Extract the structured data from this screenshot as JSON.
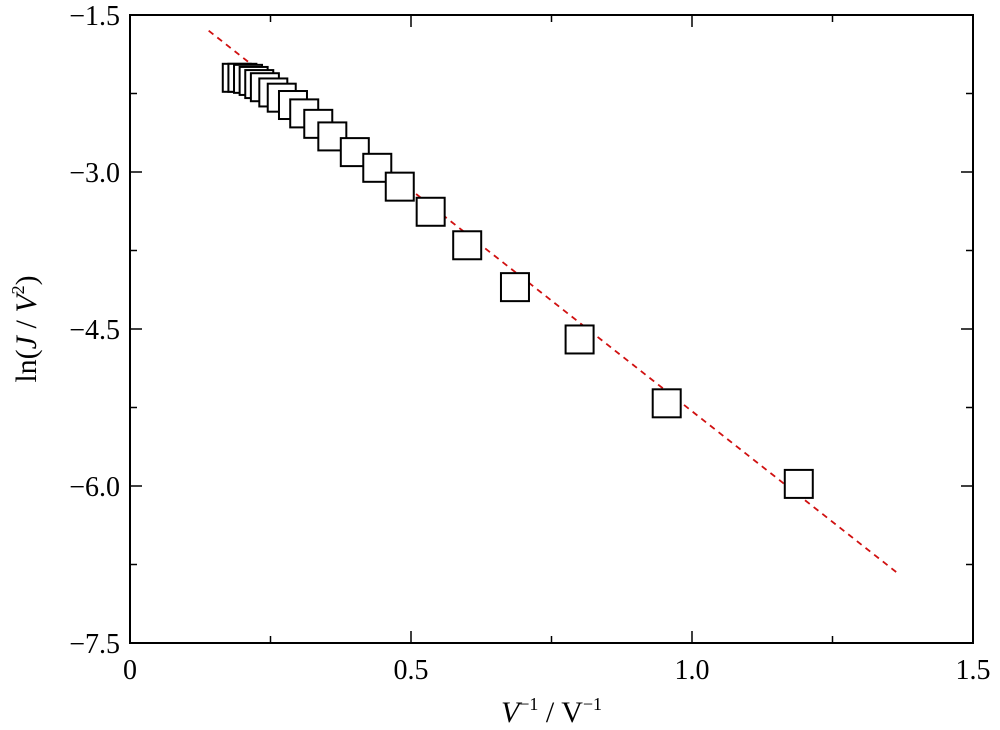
{
  "chart_data": {
    "type": "scatter",
    "xlabel_parts": [
      "V",
      "−1",
      " / V",
      "−1"
    ],
    "ylabel_parts": [
      "ln(",
      "J",
      " / ",
      "V",
      "2",
      ")"
    ],
    "xlim": [
      0,
      1.5
    ],
    "ylim": [
      -7.5,
      -1.5
    ],
    "xticks": [
      0,
      0.5,
      1.0,
      1.5
    ],
    "xtick_labels": [
      "0",
      "0.5",
      "1.0",
      "1.5"
    ],
    "yticks": [
      -1.5,
      -3.0,
      -4.5,
      -6.0,
      -7.5
    ],
    "ytick_labels": [
      "−1.5",
      "−3.0",
      "−4.5",
      "−6.0",
      "−7.5"
    ],
    "grid": false,
    "series": [
      {
        "marker": "open-square",
        "color": "#000000",
        "points": [
          {
            "x": 0.19,
            "y": -2.1
          },
          {
            "x": 0.2,
            "y": -2.1
          },
          {
            "x": 0.21,
            "y": -2.11
          },
          {
            "x": 0.22,
            "y": -2.13
          },
          {
            "x": 0.23,
            "y": -2.16
          },
          {
            "x": 0.24,
            "y": -2.19
          },
          {
            "x": 0.255,
            "y": -2.24
          },
          {
            "x": 0.27,
            "y": -2.29
          },
          {
            "x": 0.29,
            "y": -2.36
          },
          {
            "x": 0.31,
            "y": -2.44
          },
          {
            "x": 0.335,
            "y": -2.54
          },
          {
            "x": 0.36,
            "y": -2.66
          },
          {
            "x": 0.4,
            "y": -2.81
          },
          {
            "x": 0.44,
            "y": -2.96
          },
          {
            "x": 0.48,
            "y": -3.14
          },
          {
            "x": 0.535,
            "y": -3.38
          },
          {
            "x": 0.6,
            "y": -3.7
          },
          {
            "x": 0.685,
            "y": -4.1
          },
          {
            "x": 0.8,
            "y": -4.6
          },
          {
            "x": 0.955,
            "y": -5.21
          },
          {
            "x": 1.19,
            "y": -5.98
          }
        ]
      }
    ],
    "fit_line": {
      "style": "dashed",
      "color": "#d01010",
      "points": [
        {
          "x": 0.14,
          "y": -1.65
        },
        {
          "x": 1.37,
          "y": -6.85
        }
      ]
    }
  }
}
